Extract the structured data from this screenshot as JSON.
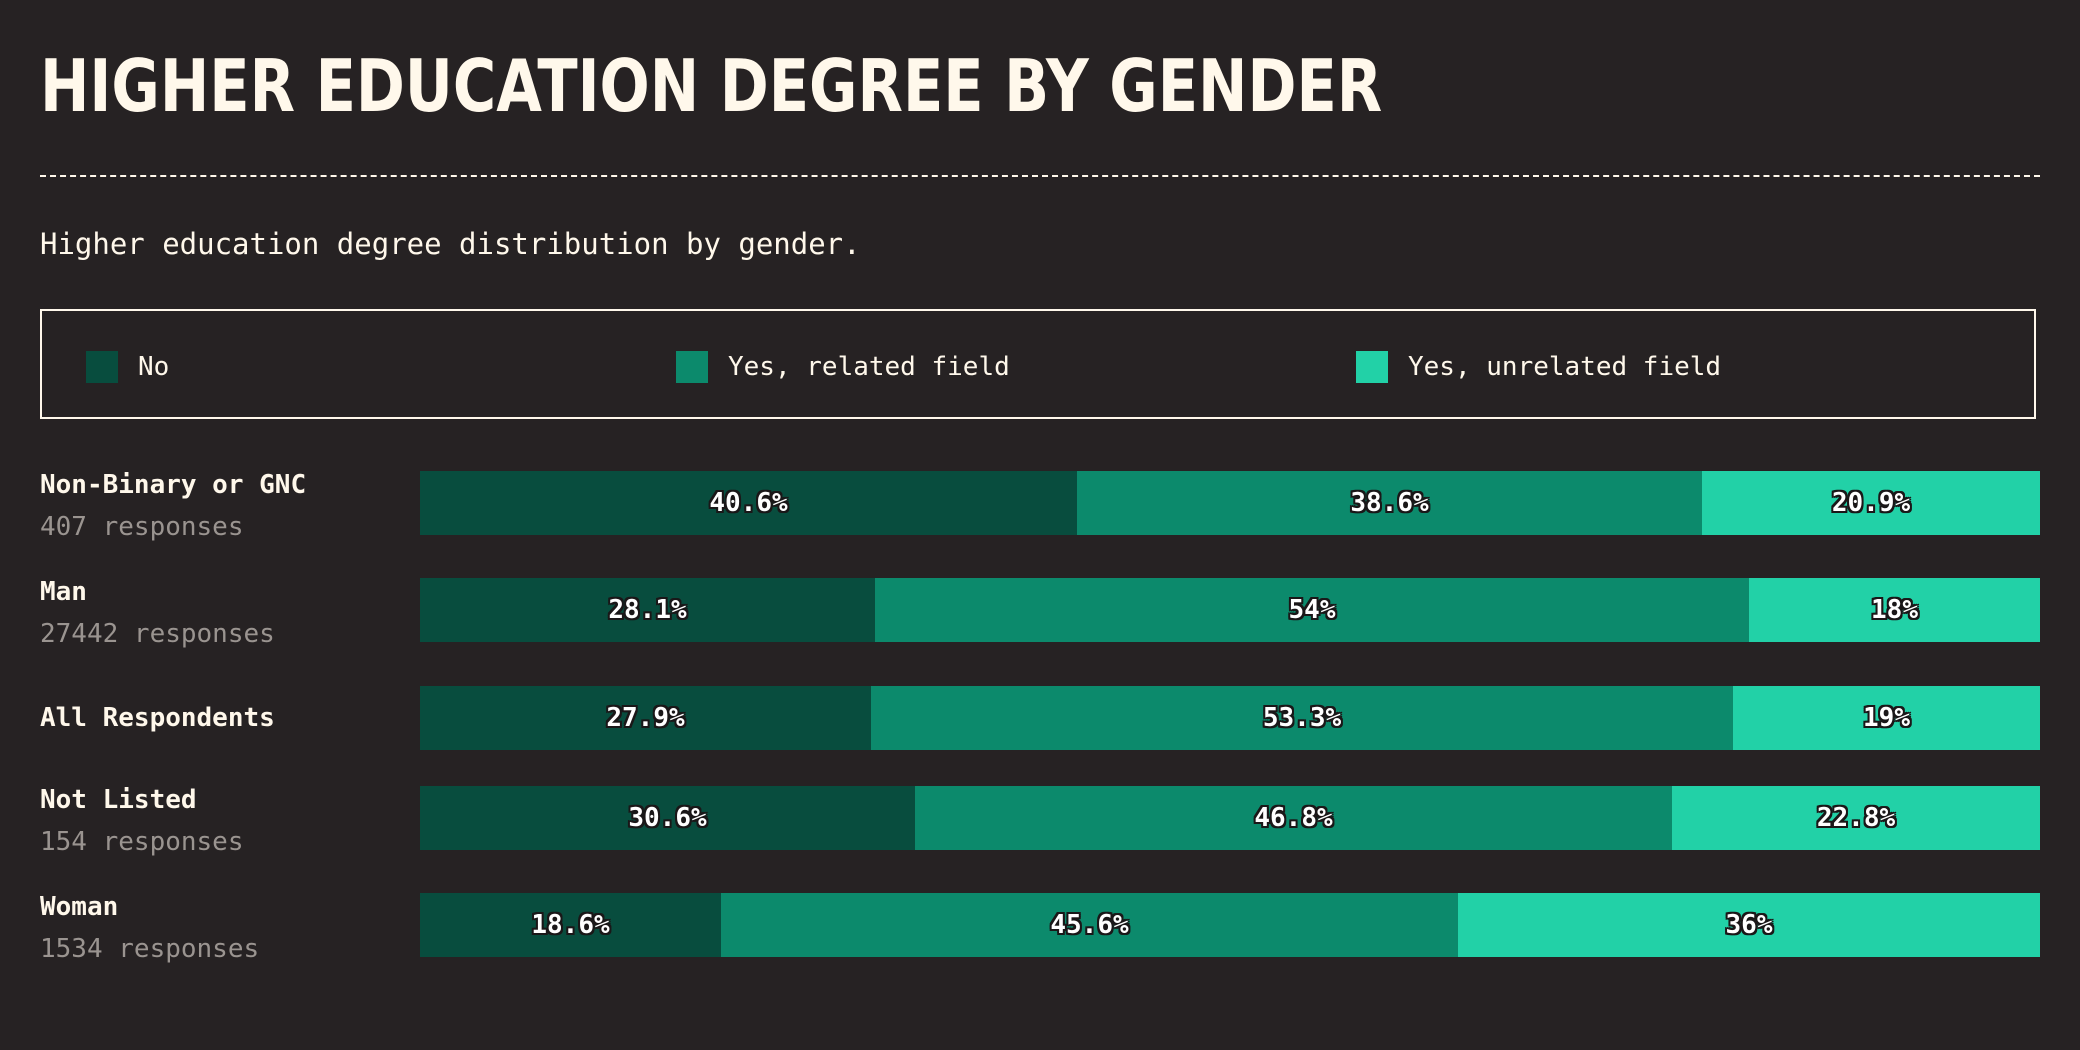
{
  "title": "HIGHER EDUCATION DEGREE BY GENDER",
  "subtitle": "Higher education degree distribution by gender.",
  "colors": {
    "No": "#084d3e",
    "Yes, related field": "#0c8a6c",
    "Yes, unrelated field": "#22d1a7"
  },
  "legend": [
    {
      "label": "No",
      "color": "#084d3e"
    },
    {
      "label": "Yes, related field",
      "color": "#0c8a6c"
    },
    {
      "label": "Yes, unrelated field",
      "color": "#22d1a7"
    }
  ],
  "chart_data": {
    "type": "bar",
    "orientation": "horizontal",
    "stacked": true,
    "normalized": true,
    "title": "HIGHER EDUCATION DEGREE BY GENDER",
    "subtitle": "Higher education degree distribution by gender.",
    "categories": [
      "Non-Binary or GNC",
      "Man",
      "All Respondents",
      "Not Listed",
      "Woman"
    ],
    "responses": [
      "407 responses",
      "27442 responses",
      "",
      "154 responses",
      "1534 responses"
    ],
    "series": [
      {
        "name": "No",
        "values": [
          40.6,
          28.1,
          27.9,
          30.6,
          18.6
        ],
        "labels": [
          "40.6%",
          "28.1%",
          "27.9%",
          "30.6%",
          "18.6%"
        ]
      },
      {
        "name": "Yes, related field",
        "values": [
          38.6,
          54,
          53.3,
          46.8,
          45.6
        ],
        "labels": [
          "38.6%",
          "54%",
          "53.3%",
          "46.8%",
          "45.6%"
        ]
      },
      {
        "name": "Yes, unrelated field",
        "values": [
          20.9,
          18,
          19,
          22.8,
          36
        ],
        "labels": [
          "20.9%",
          "18%",
          "19%",
          "22.8%",
          "36%"
        ]
      }
    ],
    "legend_position": "top",
    "grid": false
  }
}
